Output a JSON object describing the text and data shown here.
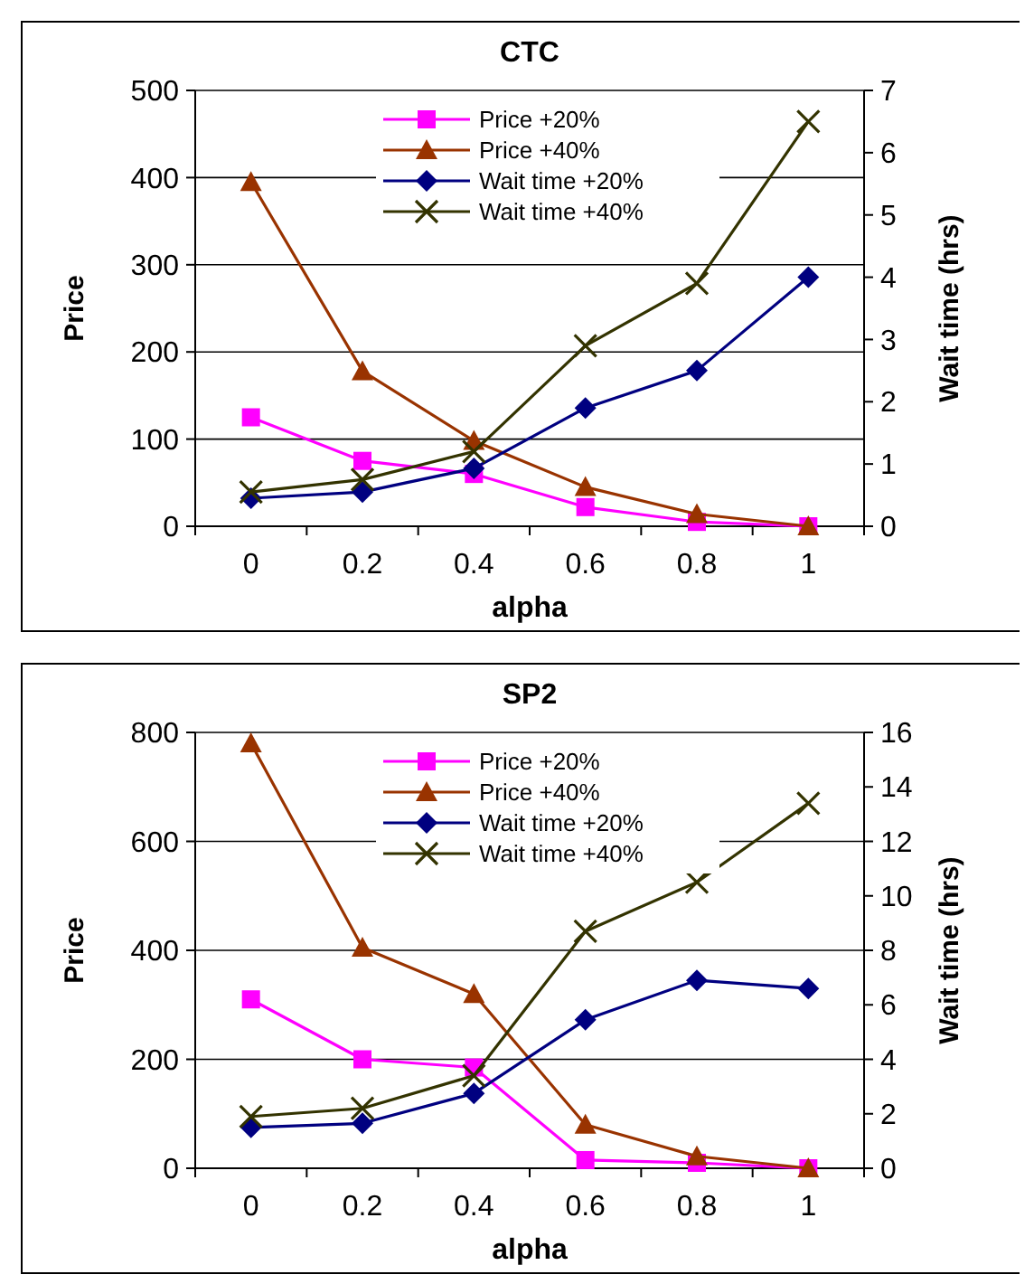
{
  "chart_data": [
    {
      "type": "line",
      "title": "CTC",
      "xlabel": "alpha",
      "ylabel": "Price",
      "y2label": "Wait time (hrs)",
      "categories": [
        "0",
        "0.2",
        "0.4",
        "0.6",
        "0.8",
        "1"
      ],
      "ylim": [
        0,
        500
      ],
      "yticks": [
        0,
        100,
        200,
        300,
        400,
        500
      ],
      "y2lim": [
        0,
        7
      ],
      "y2ticks": [
        0,
        1,
        2,
        3,
        4,
        5,
        6,
        7
      ],
      "grid": "y",
      "legend": "top",
      "series": [
        {
          "name": "Price +20%",
          "color": "#ff00ff",
          "marker": "square",
          "values": [
            125,
            75,
            60,
            22,
            5,
            0
          ]
        },
        {
          "name": "Price +40%",
          "color": "#993300",
          "marker": "triangle",
          "values": [
            395,
            178,
            98,
            45,
            14,
            0
          ]
        },
        {
          "name": "Wait time +20%",
          "color": "#000080",
          "marker": "diamond",
          "axis": "y2",
          "values": [
            0.45,
            0.55,
            0.93,
            1.9,
            2.5,
            4.0
          ]
        },
        {
          "name": "Wait time +40%",
          "color": "#333300",
          "marker": "cross",
          "axis": "y2",
          "values": [
            0.55,
            0.75,
            1.2,
            2.9,
            3.9,
            6.5
          ]
        }
      ]
    },
    {
      "type": "line",
      "title": "SP2",
      "xlabel": "alpha",
      "ylabel": "Price",
      "y2label": "Wait time (hrs)",
      "categories": [
        "0",
        "0.2",
        "0.4",
        "0.6",
        "0.8",
        "1"
      ],
      "ylim": [
        0,
        800
      ],
      "yticks": [
        0,
        200,
        400,
        600,
        800
      ],
      "y2lim": [
        0,
        16
      ],
      "y2ticks": [
        0,
        2,
        4,
        6,
        8,
        10,
        12,
        14,
        16
      ],
      "grid": "y",
      "legend": "top",
      "series": [
        {
          "name": "Price +20%",
          "color": "#ff00ff",
          "marker": "square",
          "values": [
            310,
            200,
            185,
            15,
            10,
            0
          ]
        },
        {
          "name": "Price +40%",
          "color": "#993300",
          "marker": "triangle",
          "values": [
            780,
            405,
            320,
            80,
            22,
            0
          ]
        },
        {
          "name": "Wait time +20%",
          "color": "#000080",
          "marker": "diamond",
          "axis": "y2",
          "values": [
            1.5,
            1.65,
            2.75,
            5.45,
            6.9,
            6.6
          ]
        },
        {
          "name": "Wait time +40%",
          "color": "#333300",
          "marker": "cross",
          "axis": "y2",
          "values": [
            1.9,
            2.2,
            3.4,
            8.7,
            10.5,
            13.4
          ]
        }
      ]
    }
  ]
}
